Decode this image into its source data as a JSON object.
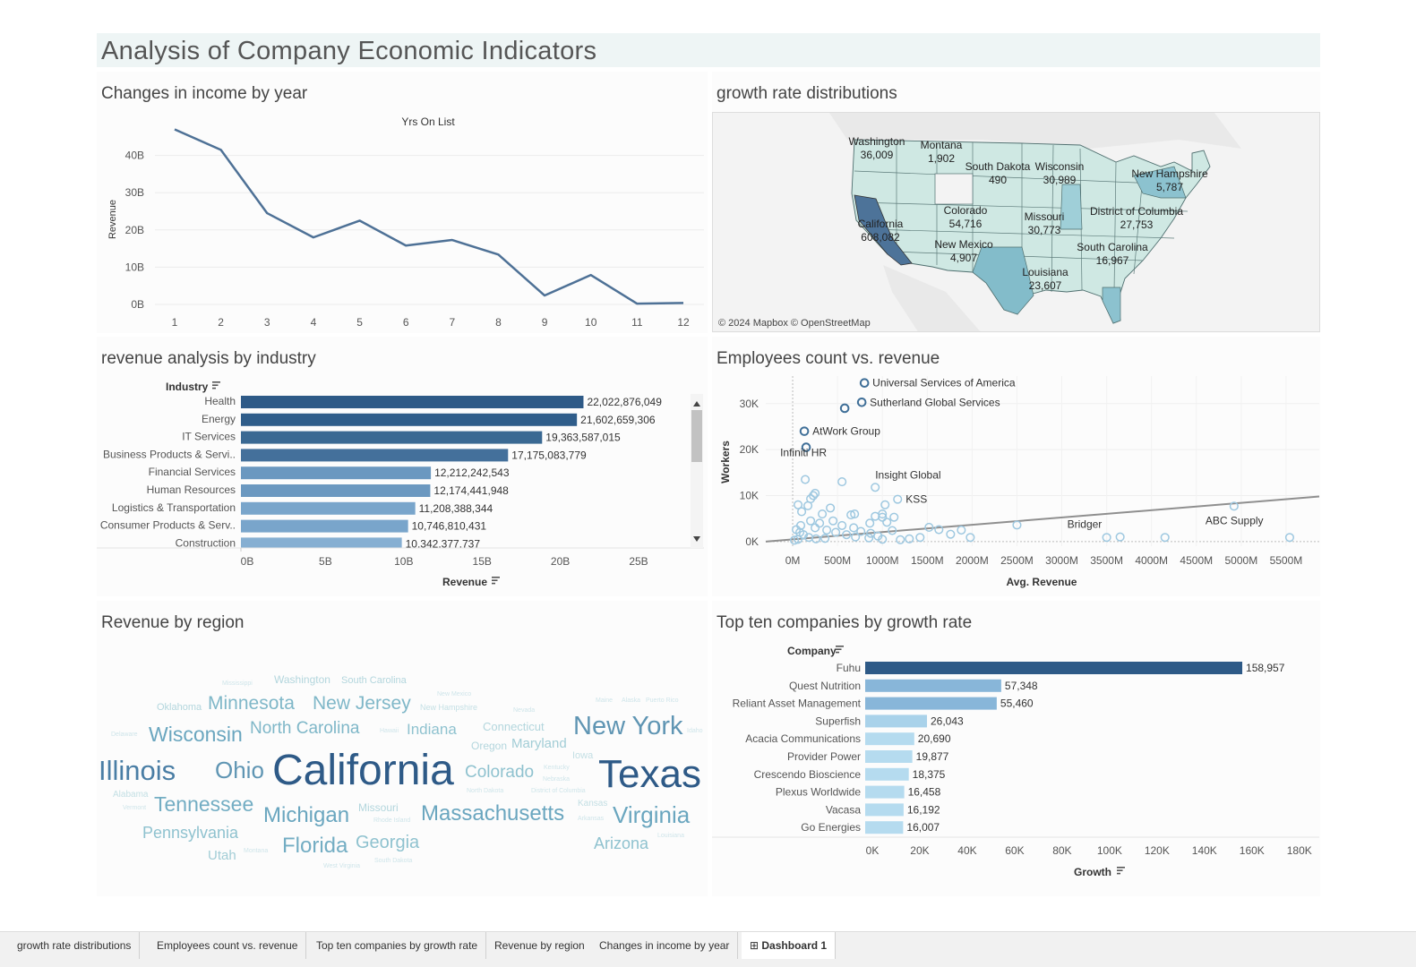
{
  "dashboard_title": "Analysis of Company Economic Indicators",
  "panels": {
    "income_by_year": "Changes in income by year",
    "growth_map": "growth rate distributions",
    "revenue_industry": "revenue analysis by industry",
    "employees_revenue": "Employees count vs. revenue",
    "revenue_region": "Revenue by region",
    "top_ten": "Top ten companies by growth rate"
  },
  "colors": {
    "dark": "#2e5a87",
    "mid": "#5b8db8",
    "light": "#a9cce3",
    "lighter": "#c7e1ef",
    "map_fill": "#cfe8e3"
  },
  "chart_data": [
    {
      "id": "income_by_year",
      "type": "line",
      "title": "Yrs On List",
      "ylabel": "Revenue",
      "x": [
        1,
        2,
        3,
        4,
        5,
        6,
        7,
        8,
        9,
        10,
        11,
        12
      ],
      "y": [
        47,
        41.5,
        24.5,
        18,
        22.5,
        15.8,
        17.3,
        13.4,
        2.4,
        7.9,
        0.2,
        0.4
      ],
      "y_unit": "B",
      "yticks": [
        "0B",
        "10B",
        "20B",
        "30B",
        "40B"
      ],
      "ylim": [
        0,
        50
      ],
      "grid": true
    },
    {
      "id": "revenue_industry",
      "type": "bar",
      "orientation": "horizontal",
      "ylabel": "Industry",
      "xlabel": "Revenue",
      "categories": [
        "Health",
        "Energy",
        "IT Services",
        "Business Products & Servi..",
        "Financial Services",
        "Human Resources",
        "Logistics & Transportation",
        "Consumer Products & Serv..",
        "Construction"
      ],
      "values": [
        22022876049,
        21602659306,
        19363587015,
        17175083779,
        12212242543,
        12174441948,
        11208388344,
        10746810431,
        10342377737
      ],
      "labels": [
        "22,022,876,049",
        "21,602,659,306",
        "19,363,587,015",
        "17,175,083,779",
        "12,212,242,543",
        "12,174,441,948",
        "11,208,388,344",
        "10,746,810,431",
        "10,342,377,737"
      ],
      "xticks": [
        "0B",
        "5B",
        "10B",
        "15B",
        "20B",
        "25B"
      ],
      "xlim": [
        0,
        30
      ]
    },
    {
      "id": "employees_revenue",
      "type": "scatter",
      "xlabel": "Avg. Revenue",
      "ylabel": "Workers",
      "xticks": [
        "0M",
        "500M",
        "1000M",
        "1500M",
        "2000M",
        "2500M",
        "3000M",
        "3500M",
        "4000M",
        "4500M",
        "5000M",
        "5500M"
      ],
      "yticks": [
        "0K",
        "10K",
        "20K",
        "30K"
      ],
      "xlim": [
        -300,
        5870
      ],
      "ylim": [
        -1000,
        36000
      ],
      "annotations": [
        {
          "label": "Universal Services of America",
          "x": 800,
          "y": 34500
        },
        {
          "label": "Sutherland Global Services",
          "x": 770,
          "y": 30300
        },
        {
          "label": "AtWork Group",
          "x": 130,
          "y": 24000
        },
        {
          "label": "Infiniti HR",
          "x": 140,
          "y": 17000
        },
        {
          "label": "Insight Global",
          "x": 920,
          "y": 11800
        },
        {
          "label": "KSS",
          "x": 1170,
          "y": 9200
        },
        {
          "label": "Bridger",
          "x": 3500,
          "y": 1000
        },
        {
          "label": "ABC Supply",
          "x": 4920,
          "y": 7700
        }
      ],
      "points": [
        [
          800,
          34500
        ],
        [
          580,
          29000
        ],
        [
          770,
          30300
        ],
        [
          130,
          24000
        ],
        [
          150,
          20500
        ],
        [
          140,
          13500
        ],
        [
          550,
          13000
        ],
        [
          920,
          11800
        ],
        [
          1170,
          9200
        ],
        [
          1030,
          8000
        ],
        [
          60,
          8000
        ],
        [
          200,
          9300
        ],
        [
          230,
          10000
        ],
        [
          250,
          10500
        ],
        [
          420,
          7300
        ],
        [
          170,
          7800
        ],
        [
          100,
          6500
        ],
        [
          330,
          6000
        ],
        [
          650,
          5800
        ],
        [
          690,
          6000
        ],
        [
          1000,
          5300
        ],
        [
          1130,
          5300
        ],
        [
          920,
          5500
        ],
        [
          1000,
          6000
        ],
        [
          1050,
          4200
        ],
        [
          860,
          4000
        ],
        [
          1520,
          3100
        ],
        [
          1630,
          2600
        ],
        [
          1880,
          2500
        ],
        [
          2500,
          3600
        ],
        [
          3500,
          900
        ],
        [
          3650,
          1000
        ],
        [
          4150,
          900
        ],
        [
          4920,
          7700
        ],
        [
          5540,
          900
        ],
        [
          250,
          3000
        ],
        [
          380,
          2500
        ],
        [
          480,
          2000
        ],
        [
          600,
          1500
        ],
        [
          700,
          1000
        ],
        [
          850,
          800
        ],
        [
          1000,
          500
        ],
        [
          1200,
          400
        ],
        [
          1300,
          600
        ],
        [
          1420,
          900
        ],
        [
          1760,
          1600
        ],
        [
          1980,
          900
        ],
        [
          300,
          4000
        ],
        [
          450,
          4500
        ],
        [
          550,
          3500
        ],
        [
          80,
          2000
        ],
        [
          120,
          1500
        ],
        [
          60,
          500
        ],
        [
          180,
          900
        ],
        [
          260,
          600
        ],
        [
          360,
          700
        ],
        [
          20,
          300
        ],
        [
          40,
          2600
        ],
        [
          90,
          3500
        ],
        [
          200,
          4500
        ],
        [
          680,
          3000
        ],
        [
          760,
          2200
        ],
        [
          870,
          1800
        ],
        [
          1110,
          2400
        ],
        [
          950,
          1200
        ]
      ],
      "trend": {
        "x": [
          -300,
          5870
        ],
        "y": [
          0,
          9800
        ]
      }
    },
    {
      "id": "top_ten",
      "type": "bar",
      "orientation": "horizontal",
      "ylabel": "Company",
      "xlabel": "Growth",
      "categories": [
        "Fuhu",
        "Quest Nutrition",
        "Reliant Asset Management",
        "Superfish",
        "Acacia Communications",
        "Provider Power",
        "Crescendo Bioscience",
        "Plexus Worldwide",
        "Vacasa",
        "Go Energies"
      ],
      "values": [
        158957,
        57348,
        55460,
        26043,
        20690,
        19877,
        18375,
        16458,
        16192,
        16007
      ],
      "labels": [
        "158,957",
        "57,348",
        "55,460",
        "26,043",
        "20,690",
        "19,877",
        "18,375",
        "16,458",
        "16,192",
        "16,007"
      ],
      "xticks": [
        "0K",
        "20K",
        "40K",
        "60K",
        "80K",
        "100K",
        "120K",
        "140K",
        "160K",
        "180K"
      ],
      "xlim": [
        0,
        185000
      ]
    }
  ],
  "map": {
    "attribution": "© 2024 Mapbox © OpenStreetMap",
    "labels": [
      {
        "name": "Washington",
        "value": "36,009"
      },
      {
        "name": "Montana",
        "value": "1,902"
      },
      {
        "name": "South Dakota",
        "value": "490"
      },
      {
        "name": "Wisconsin",
        "value": "30,989"
      },
      {
        "name": "New Hampshire",
        "value": "5,787"
      },
      {
        "name": "California",
        "value": "608,082"
      },
      {
        "name": "Colorado",
        "value": "54,716"
      },
      {
        "name": "Missouri",
        "value": "30,773"
      },
      {
        "name": "District of Columbia",
        "value": "27,753"
      },
      {
        "name": "New Mexico",
        "value": "4,907"
      },
      {
        "name": "South Carolina",
        "value": "16,967"
      },
      {
        "name": "Louisiana",
        "value": "23,607"
      }
    ]
  },
  "wordcloud": [
    {
      "text": "California",
      "size": 48,
      "color": "#2e5a87"
    },
    {
      "text": "Texas",
      "size": 44,
      "color": "#2e5a87"
    },
    {
      "text": "Illinois",
      "size": 31,
      "color": "#4a7ea5"
    },
    {
      "text": "New York",
      "size": 29,
      "color": "#5f95b3"
    },
    {
      "text": "Ohio",
      "size": 26,
      "color": "#5f95b3"
    },
    {
      "text": "Virginia",
      "size": 26,
      "color": "#6aa6bf"
    },
    {
      "text": "Massachusetts",
      "size": 24,
      "color": "#6aa6bf"
    },
    {
      "text": "Michigan",
      "size": 24,
      "color": "#6aa6bf"
    },
    {
      "text": "Tennessee",
      "size": 23,
      "color": "#73adc3"
    },
    {
      "text": "Wisconsin",
      "size": 23,
      "color": "#6aa6bf"
    },
    {
      "text": "Florida",
      "size": 24,
      "color": "#73adc3"
    },
    {
      "text": "Minnesota",
      "size": 21,
      "color": "#7fb7c8"
    },
    {
      "text": "New Jersey",
      "size": 21,
      "color": "#7fb7c8"
    },
    {
      "text": "North Carolina",
      "size": 19,
      "color": "#7fb7c8"
    },
    {
      "text": "Colorado",
      "size": 19,
      "color": "#8fc2cf"
    },
    {
      "text": "Georgia",
      "size": 20,
      "color": "#8fc2cf"
    },
    {
      "text": "Pennsylvania",
      "size": 18,
      "color": "#8fc2cf"
    },
    {
      "text": "Arizona",
      "size": 18,
      "color": "#8fc2cf"
    },
    {
      "text": "Indiana",
      "size": 17,
      "color": "#8fc2cf"
    },
    {
      "text": "Maryland",
      "size": 15,
      "color": "#a2cdd6"
    },
    {
      "text": "Utah",
      "size": 15,
      "color": "#a2cdd6"
    },
    {
      "text": "Connecticut",
      "size": 13,
      "color": "#b3d6dd"
    },
    {
      "text": "Oregon",
      "size": 12,
      "color": "#b3d6dd"
    },
    {
      "text": "Washington",
      "size": 12,
      "color": "#b3d6dd"
    },
    {
      "text": "South Carolina",
      "size": 11,
      "color": "#b3d6dd"
    },
    {
      "text": "Missouri",
      "size": 12,
      "color": "#b3d6dd"
    },
    {
      "text": "Oklahoma",
      "size": 11,
      "color": "#b3d6dd"
    },
    {
      "text": "Iowa",
      "size": 11,
      "color": "#c3dfe4"
    },
    {
      "text": "Kansas",
      "size": 10,
      "color": "#c3dfe4"
    },
    {
      "text": "Alabama",
      "size": 10,
      "color": "#c3dfe4"
    },
    {
      "text": "New Hampshire",
      "size": 9,
      "color": "#c3dfe4"
    },
    {
      "text": "Mississippi",
      "size": 7,
      "color": "#cfe5ea"
    },
    {
      "text": "New Mexico",
      "size": 7,
      "color": "#cfe5ea"
    },
    {
      "text": "Nevada",
      "size": 7,
      "color": "#cfe5ea"
    },
    {
      "text": "Maine",
      "size": 7,
      "color": "#cfe5ea"
    },
    {
      "text": "Alaska",
      "size": 7,
      "color": "#cfe5ea"
    },
    {
      "text": "Puerto Rico",
      "size": 7,
      "color": "#cfe5ea"
    },
    {
      "text": "Delaware",
      "size": 7,
      "color": "#cfe5ea"
    },
    {
      "text": "Hawaii",
      "size": 7,
      "color": "#cfe5ea"
    },
    {
      "text": "Idaho",
      "size": 7,
      "color": "#cfe5ea"
    },
    {
      "text": "Kentucky",
      "size": 7,
      "color": "#cfe5ea"
    },
    {
      "text": "Nebraska",
      "size": 7,
      "color": "#cfe5ea"
    },
    {
      "text": "North Dakota",
      "size": 7,
      "color": "#cfe5ea"
    },
    {
      "text": "District of Columbia",
      "size": 7,
      "color": "#cfe5ea"
    },
    {
      "text": "Vermont",
      "size": 7,
      "color": "#cfe5ea"
    },
    {
      "text": "Rhode Island",
      "size": 7,
      "color": "#cfe5ea"
    },
    {
      "text": "Arkansas",
      "size": 7,
      "color": "#cfe5ea"
    },
    {
      "text": "Louisiana",
      "size": 7,
      "color": "#cfe5ea"
    },
    {
      "text": "Montana",
      "size": 7,
      "color": "#cfe5ea"
    },
    {
      "text": "West Virginia",
      "size": 7,
      "color": "#cfe5ea"
    },
    {
      "text": "South Dakota",
      "size": 7,
      "color": "#cfe5ea"
    }
  ],
  "tabs": [
    {
      "label": "growth rate distributions",
      "active": false
    },
    {
      "label": "Employees count vs. revenue",
      "active": false
    },
    {
      "label": "Top ten companies by growth rate",
      "active": false
    },
    {
      "label": "Revenue by region",
      "active": false
    },
    {
      "label": "Changes in income by year",
      "active": false
    },
    {
      "label": "Dashboard 1",
      "active": true,
      "icon": "dashboard-grid-icon"
    }
  ]
}
